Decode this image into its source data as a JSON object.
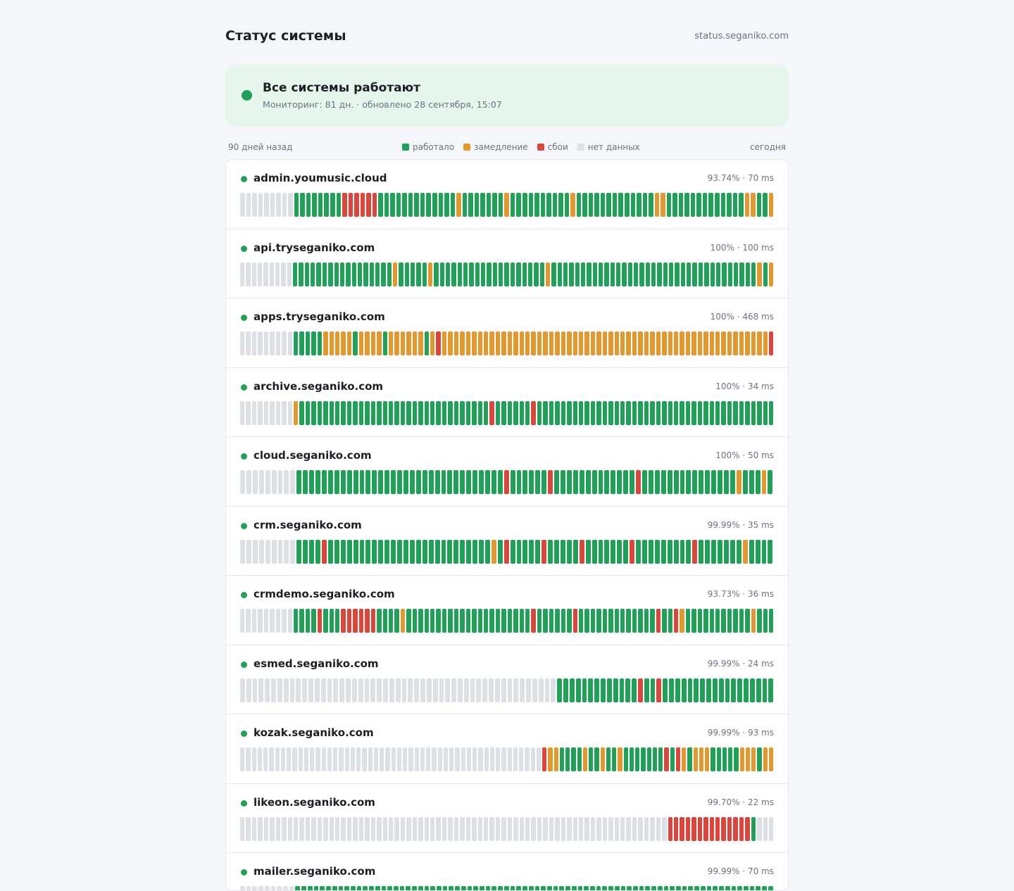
{
  "header": {
    "title": "Статус системы",
    "domain": "status.seganiko.com"
  },
  "banner": {
    "title": "Все системы работают",
    "subtitle": "Мониторинг: 81 дн. · обновлено 28 сентября, 15:07",
    "status_color": "#22a05a"
  },
  "legend": {
    "left_label": "90 дней назад",
    "right_label": "сегодня",
    "items": [
      {
        "label": "работало",
        "color": "#22a05a"
      },
      {
        "label": "замедление",
        "color": "#e0982f"
      },
      {
        "label": "сбои",
        "color": "#d9463e"
      },
      {
        "label": "нет данных",
        "color": "#dde1e6"
      }
    ]
  },
  "colors": {
    "G": "#22a05a",
    "Y": "#e0982f",
    "R": "#d9463e",
    "N": "#dde1e6"
  },
  "services": [
    {
      "name": "admin.youmusic.cloud",
      "stats": "93.74% · 70 ms",
      "days": "NNNNNNNNNGGGGGGGGRRRRRRGGGGGGGGGGGGGYGGGGGGGYGGGGGGGGGGYGGGGGGGGGGGGGYYGGGGGGGGGGGGGYYGGY"
    },
    {
      "name": "api.tryseganiko.com",
      "stats": "100% · 100 ms",
      "days": "NNNNNNNNNGGGGGGGGGGGGGGGGGYGGGGGYGGGGGGGGGGGGGGGGGGGYGGGGGGGGGGGGGGGGGGGGGGGGGGGGGGGGGGGYGY"
    },
    {
      "name": "apps.tryseganiko.com",
      "stats": "100% · 468 ms",
      "days": "NNNNNNNNNGGGGGYYYYYGYYYYGYYYYYYGYRYYYYYYYYYYYYYYYYYYYYYYYYYYYYYYYYYYYYYYYYYYYYYYYYYYYYYYYR"
    },
    {
      "name": "archive.seganiko.com",
      "stats": "100% · 34 ms",
      "days": "NNNNNNNNNYGGGGGGGGGGGGGGGGGGGGGGGGGGGGGGGGRGGGGGGRGGGGGGGGGGGGGGGGGGGGGGGGGGGGGGGGGGGGGGGG"
    },
    {
      "name": "cloud.seganiko.com",
      "stats": "100% · 50 ms",
      "days": "NNNNNNNNNGGGGGGGGGGGGGGGGGGGGGGGGGGGGGGGGGRGGGGGGRGGGGGGGGGGGGGRGGGGGGGGGGGGGGGYGGGYG"
    },
    {
      "name": "crm.seganiko.com",
      "stats": "99.99% · 35 ms",
      "days": "NNNNNNNNNGGGGRGGGGGGGGGGGGGGGGGGGGGGGGGGYGRGGGGGRGGGGGRGGGGGGGRGGGGGGGGGRGGGGGGGYGGGG"
    },
    {
      "name": "crmdemo.seganiko.com",
      "stats": "93.73% · 36 ms",
      "days": "NNNNNNNNNGGGGRGGGRRRRRRGGGGYGGGGGGGGGGGGGGGGGGGGGRGGGGGGRGGGGGGGGGGGGGRGGRYGGGGGGGGGGGYGGG"
    },
    {
      "name": "esmed.seganiko.com",
      "stats": "99.99% · 24 ms",
      "days": "NNNNNNNNNNNNNNNNNNNNNNNNNNNNNNNNNNNNNNNNNNNNNNNNNNNGGGGGGGGGGGGGRGGRGGGGGGGGGGGGGGGGGG"
    },
    {
      "name": "kozak.seganiko.com",
      "stats": "99.99% · 93 ms",
      "days": "NNNNNNNNNNNNNNNNNNNNNNNNNNNNNNNNNNNNNNNNNNNNNNNNNNNNRYYGGGGYGGYGGYGGGGGGGRGRYGYYYGGGGGYYYGYY"
    },
    {
      "name": "likeon.seganiko.com",
      "stats": "99.70% · 22 ms",
      "days": "NNNNNNNNNNNNNNNNNNNNNNNNNNNNNNNNNNNNNNNNNNNNNNNNNNNNNNNNNNNNNNNNNNNNNNNNRRRRRRRRRRRRRRGNNN"
    },
    {
      "name": "mailer.seganiko.com",
      "stats": "99.99% · 70 ms",
      "days": "NNNNNNNNNGGGGGGGGGGGGGGGGGGGGGGGGGGGGGGGGGGGGGGGGGGGGGGGGGGGGGGGGGGGGGGGGGGGGGGGGGGGGGG"
    }
  ]
}
